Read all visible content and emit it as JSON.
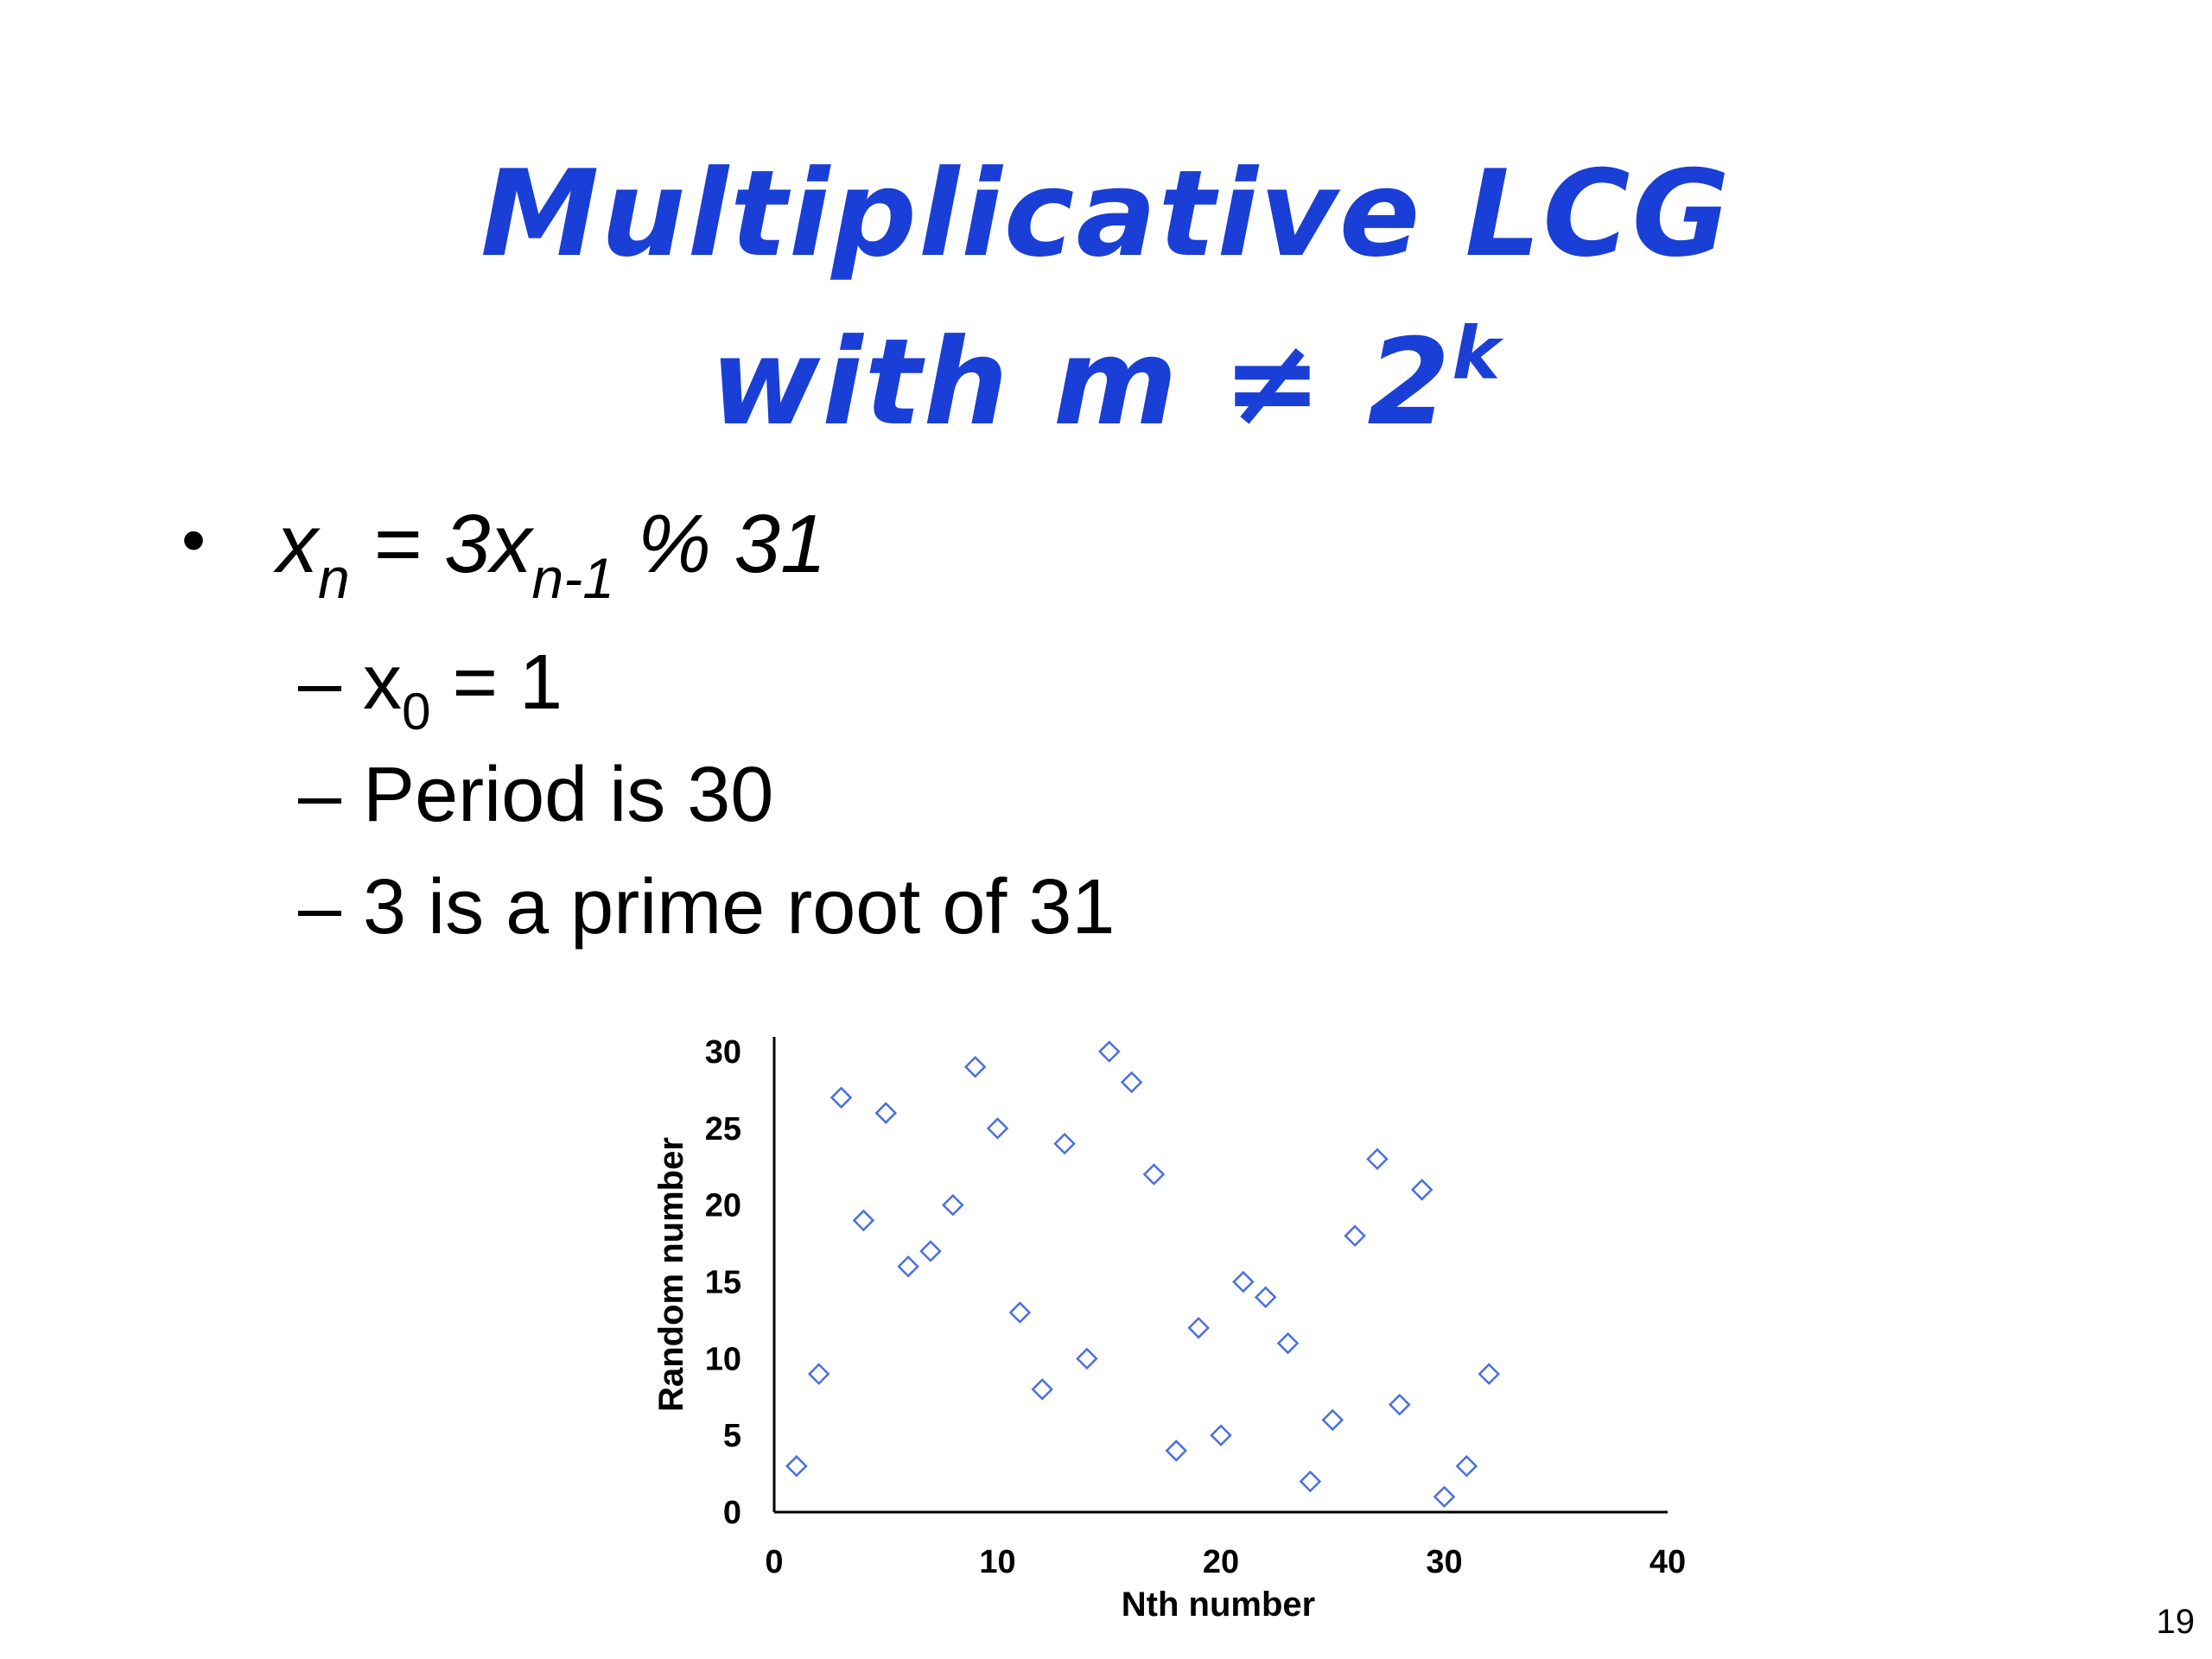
{
  "slide": {
    "title_line1": "Multiplicative LCG",
    "title_line2_base": "with m ≠ 2",
    "title_line2_sup": "k",
    "formula": {
      "bullet": "•",
      "x": "x",
      "sub_n": "n",
      "eq": " = 3x",
      "sub_n1": "n-1",
      "mod": " % 31"
    },
    "sub_bullets": {
      "seed_prefix": "– x",
      "seed_sub": "0",
      "seed_suffix": " = 1",
      "period": "– Period is 30",
      "root": "– 3 is a prime root of 31"
    },
    "page_number": "19"
  },
  "colors": {
    "title": "#1a3fd6",
    "marker": "#4a6fe0",
    "axis": "#000000"
  },
  "chart_data": {
    "type": "scatter",
    "marker": "diamond",
    "title": "",
    "xlabel": "Nth number",
    "ylabel": "Random number",
    "xlim": [
      0,
      40
    ],
    "ylim": [
      0,
      30
    ],
    "x_ticks": [
      0,
      10,
      20,
      30,
      40
    ],
    "y_ticks": [
      0,
      5,
      10,
      15,
      20,
      25,
      30
    ],
    "grid": false,
    "legend": "none",
    "x": [
      1,
      2,
      3,
      4,
      5,
      6,
      7,
      8,
      9,
      10,
      11,
      12,
      13,
      14,
      15,
      16,
      17,
      18,
      19,
      20,
      21,
      22,
      23,
      24,
      25,
      26,
      27,
      28,
      29,
      30,
      31,
      32
    ],
    "y": [
      3,
      9,
      27,
      19,
      26,
      16,
      17,
      20,
      29,
      25,
      13,
      8,
      24,
      10,
      30,
      28,
      22,
      4,
      12,
      5,
      15,
      14,
      11,
      2,
      6,
      18,
      23,
      7,
      21,
      1,
      3,
      9
    ]
  }
}
